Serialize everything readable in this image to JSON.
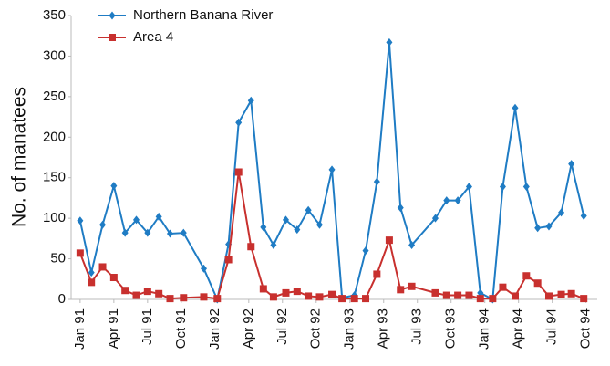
{
  "chart_data": {
    "type": "line",
    "y_label": "No. of manatees",
    "x": [
      0,
      1,
      2,
      3,
      4,
      5,
      6,
      7,
      8,
      9.2,
      11,
      12.2,
      13.2,
      14.1,
      15.2,
      16.3,
      17.2,
      18.3,
      19.3,
      20.3,
      21.3,
      22.4,
      23.3,
      24.4,
      25.4,
      26.4,
      27.5,
      28.5,
      29.5,
      31.6,
      32.6,
      33.6,
      34.6,
      35.6,
      36.7,
      37.6,
      38.7,
      39.7,
      40.7,
      41.7,
      42.8,
      43.7,
      44.8
    ],
    "series": [
      {
        "name": "Northern Banana River",
        "color": "#1f7cc4",
        "marker": "diamond",
        "values": [
          97,
          33,
          92,
          140,
          82,
          98,
          82,
          102,
          81,
          82,
          38,
          0,
          68,
          218,
          245,
          89,
          67,
          98,
          86,
          110,
          92,
          160,
          2,
          5,
          60,
          145,
          317,
          113,
          67,
          100,
          122,
          122,
          139,
          8,
          0,
          139,
          236,
          139,
          88,
          90,
          107,
          167,
          103
        ]
      },
      {
        "name": "Area 4",
        "color": "#c8302e",
        "marker": "square",
        "values": [
          57,
          21,
          40,
          27,
          11,
          5,
          10,
          7,
          1,
          2,
          3,
          1,
          49,
          157,
          65,
          13,
          3,
          8,
          10,
          4,
          3,
          6,
          1,
          1,
          1,
          31,
          73,
          12,
          16,
          8,
          5,
          5,
          5,
          1,
          1,
          15,
          4,
          29,
          20,
          4,
          6,
          7,
          1
        ]
      }
    ],
    "xlim": [
      -0.8,
      46
    ],
    "xticks": [
      {
        "value": 0,
        "label": "Jan 91"
      },
      {
        "value": 3,
        "label": "Apr 91"
      },
      {
        "value": 6,
        "label": "Jul 91"
      },
      {
        "value": 9,
        "label": "Oct 91"
      },
      {
        "value": 12,
        "label": "Jan 92"
      },
      {
        "value": 15,
        "label": "Apr 92"
      },
      {
        "value": 18,
        "label": "Jul 92"
      },
      {
        "value": 21,
        "label": "Oct 92"
      },
      {
        "value": 24,
        "label": "Jan 93"
      },
      {
        "value": 27,
        "label": "Apr 93"
      },
      {
        "value": 30,
        "label": "Jul 93"
      },
      {
        "value": 33,
        "label": "Oct 93"
      },
      {
        "value": 36,
        "label": "Jan 94"
      },
      {
        "value": 39,
        "label": "Apr 94"
      },
      {
        "value": 42,
        "label": "Jul 94"
      },
      {
        "value": 45,
        "label": "Oct 94"
      }
    ],
    "ylim": [
      0,
      350
    ],
    "yticks": [
      0,
      50,
      100,
      150,
      200,
      250,
      300,
      350
    ],
    "legend": "top-left",
    "grid": false
  }
}
